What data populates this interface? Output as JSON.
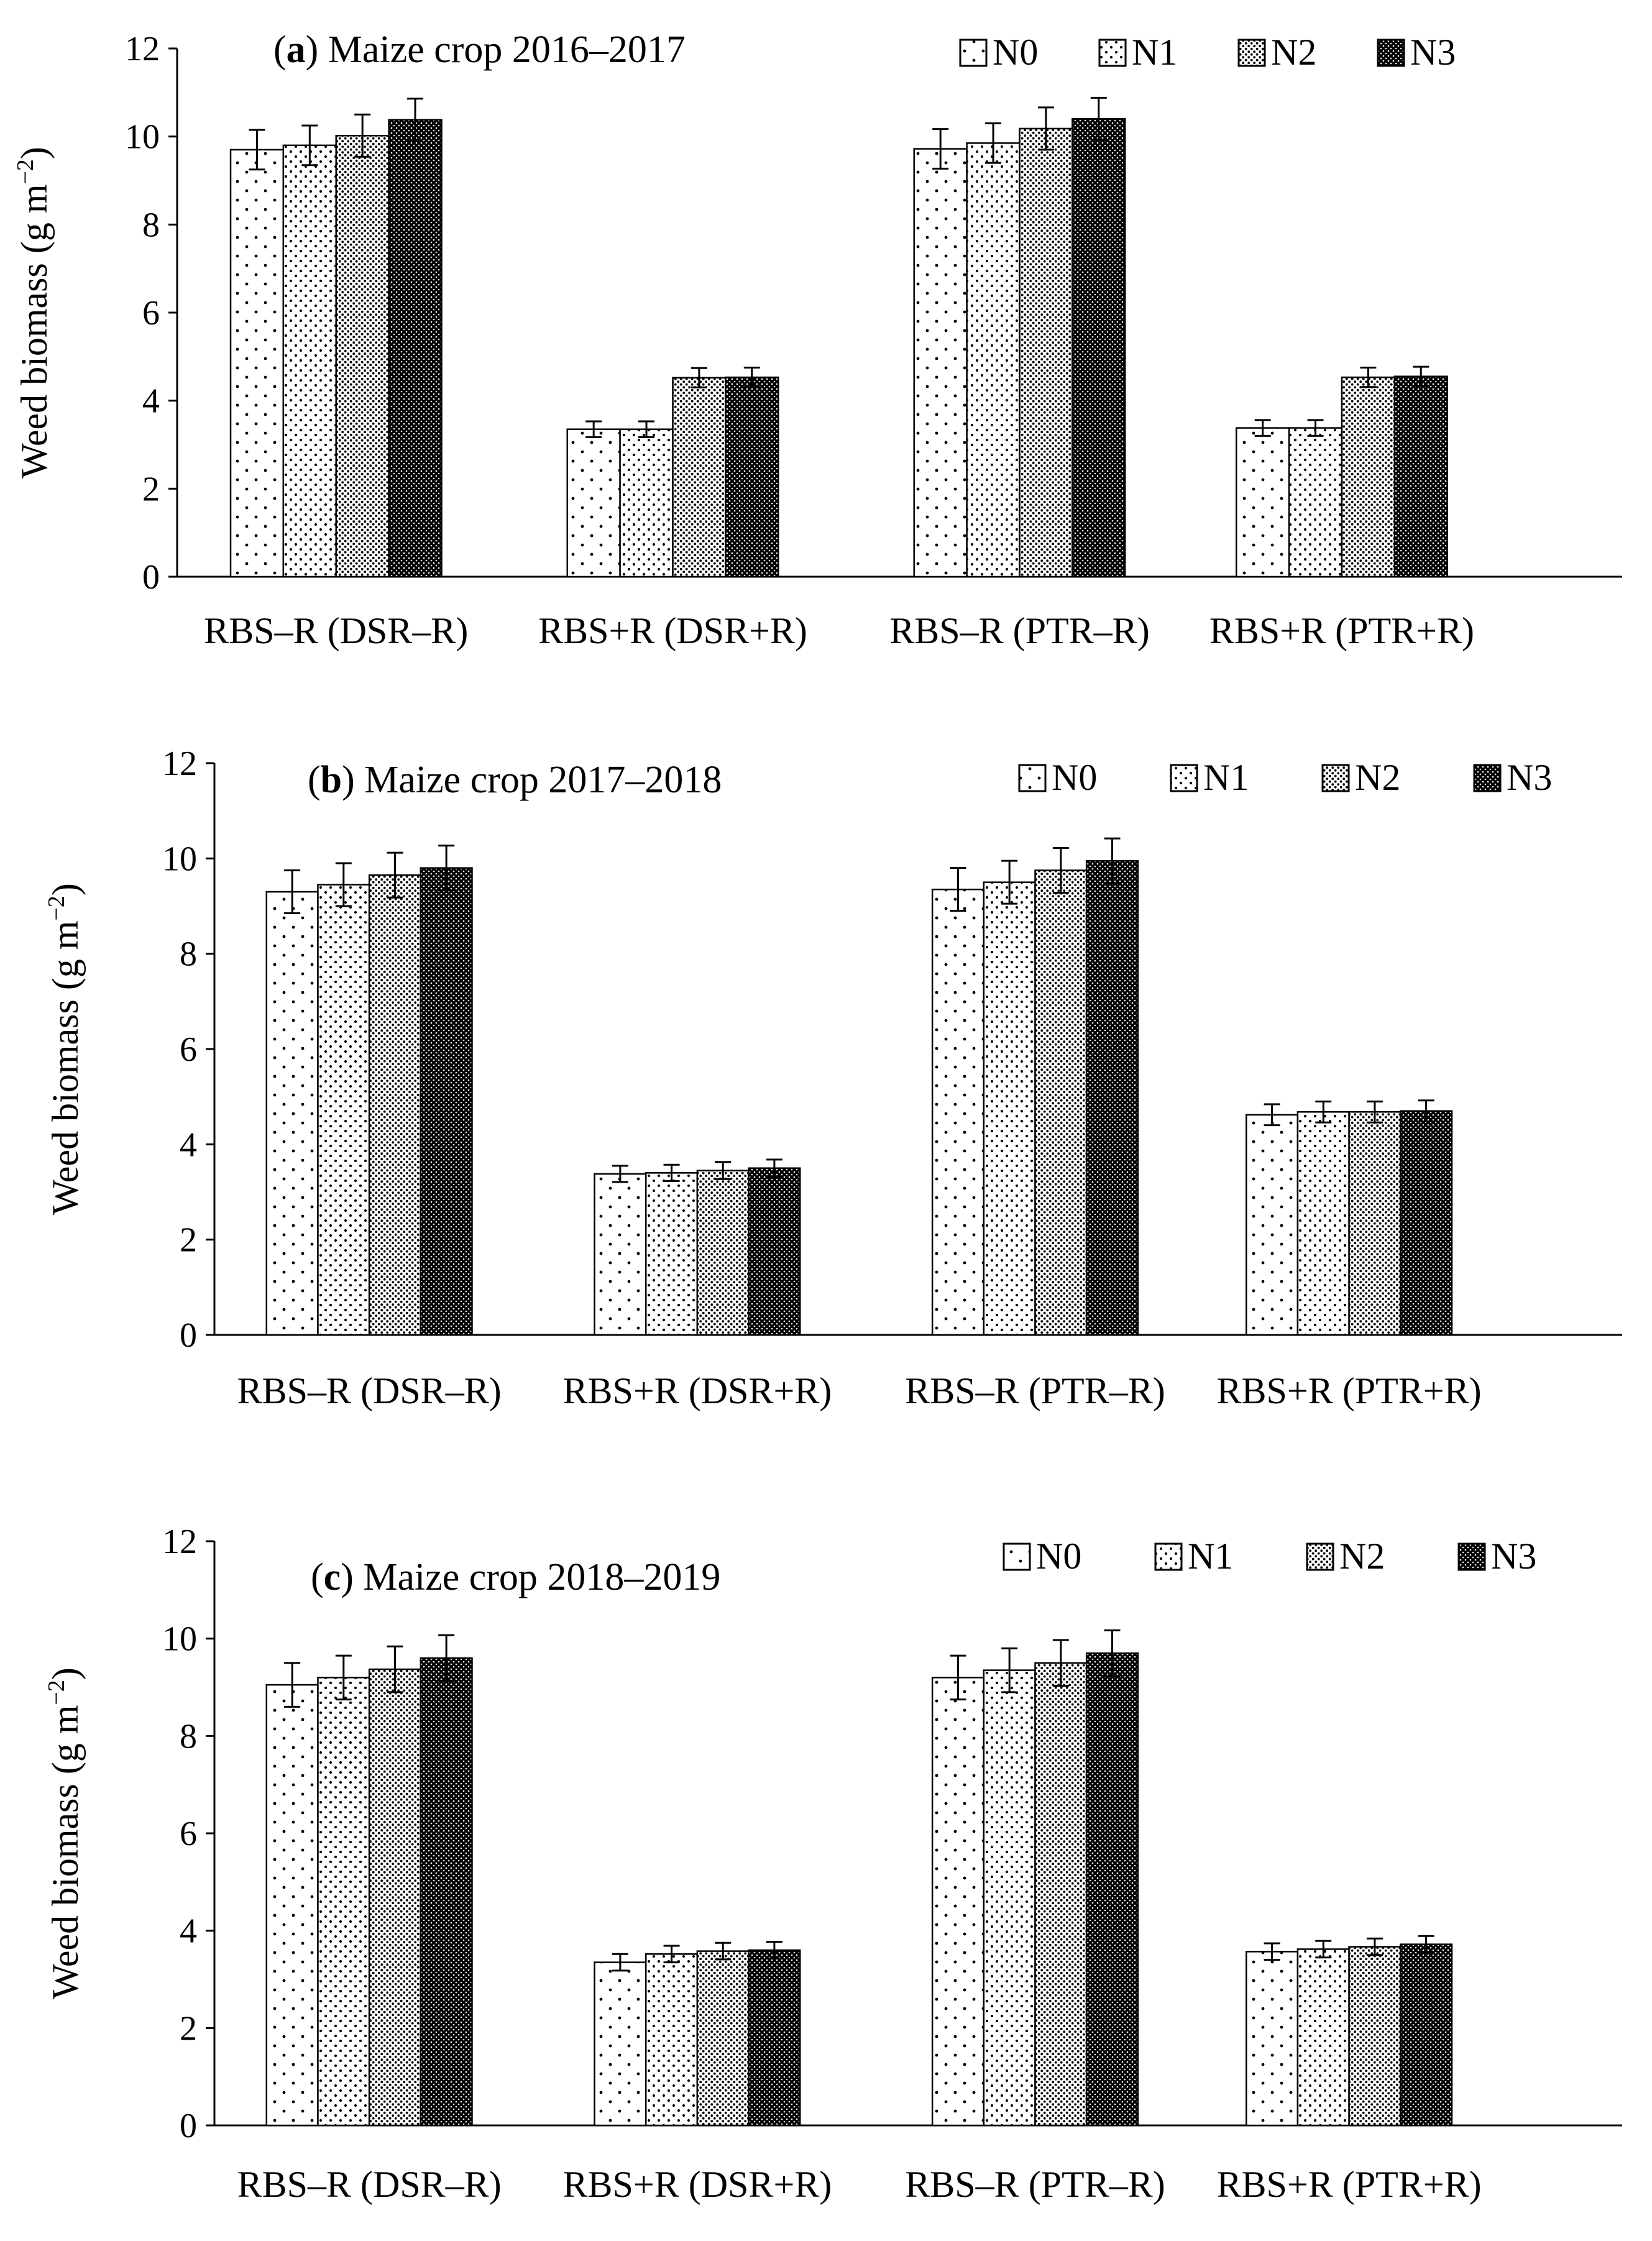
{
  "chart_data": [
    {
      "type": "bar",
      "panel": "a",
      "title_prefix": "(",
      "title_bold": "a",
      "title_rest": ") Maize crop 2016–2017",
      "ylabel": "Weed biomass (g m",
      "ylabel_sup": "−2",
      "ylabel_close": ")",
      "xlabel": "",
      "ylim": [
        0,
        12
      ],
      "yticks": [
        0,
        2,
        4,
        6,
        8,
        10,
        12
      ],
      "grid": false,
      "legend_position": "top-right",
      "categories": [
        "RBS–R (DSR–R)",
        "RBS+R (DSR+R)",
        "RBS–R (PTR–R)",
        "RBS+R (PTR+R)"
      ],
      "series": [
        {
          "name": "N0",
          "values": [
            9.7,
            3.35,
            9.72,
            3.38
          ],
          "errors": [
            0.45,
            0.18,
            0.45,
            0.18
          ]
        },
        {
          "name": "N1",
          "values": [
            9.8,
            3.35,
            9.85,
            3.38
          ],
          "errors": [
            0.45,
            0.18,
            0.45,
            0.18
          ]
        },
        {
          "name": "N2",
          "values": [
            10.02,
            4.52,
            10.18,
            4.53
          ],
          "errors": [
            0.48,
            0.22,
            0.48,
            0.22
          ]
        },
        {
          "name": "N3",
          "values": [
            10.38,
            4.53,
            10.4,
            4.55
          ],
          "errors": [
            0.48,
            0.22,
            0.48,
            0.22
          ]
        }
      ]
    },
    {
      "type": "bar",
      "panel": "b",
      "title_prefix": "(",
      "title_bold": "b",
      "title_rest": ") Maize crop 2017–2018",
      "ylabel": "Weed biomass (g m",
      "ylabel_sup": "−2",
      "ylabel_close": ")",
      "xlabel": "",
      "ylim": [
        0,
        12
      ],
      "yticks": [
        0,
        2,
        4,
        6,
        8,
        10,
        12
      ],
      "grid": false,
      "legend_position": "top-right",
      "categories": [
        "RBS–R (DSR–R)",
        "RBS+R (DSR+R)",
        "RBS–R (PTR–R)",
        "RBS+R (PTR+R)"
      ],
      "series": [
        {
          "name": "N0",
          "values": [
            9.3,
            3.38,
            9.35,
            4.62
          ],
          "errors": [
            0.45,
            0.17,
            0.45,
            0.22
          ]
        },
        {
          "name": "N1",
          "values": [
            9.45,
            3.4,
            9.5,
            4.68
          ],
          "errors": [
            0.45,
            0.17,
            0.45,
            0.22
          ]
        },
        {
          "name": "N2",
          "values": [
            9.65,
            3.45,
            9.75,
            4.68
          ],
          "errors": [
            0.47,
            0.18,
            0.47,
            0.22
          ]
        },
        {
          "name": "N3",
          "values": [
            9.8,
            3.5,
            9.95,
            4.7
          ],
          "errors": [
            0.47,
            0.18,
            0.47,
            0.22
          ]
        }
      ]
    },
    {
      "type": "bar",
      "panel": "c",
      "title_prefix": "(",
      "title_bold": "c",
      "title_rest": ") Maize crop 2018–2019",
      "ylabel": "Weed biomass (g m",
      "ylabel_sup": "−2",
      "ylabel_close": ")",
      "xlabel": "",
      "ylim": [
        0,
        12
      ],
      "yticks": [
        0,
        2,
        4,
        6,
        8,
        10,
        12
      ],
      "grid": false,
      "legend_position": "top-right",
      "categories": [
        "RBS–R (DSR–R)",
        "RBS+R (DSR+R)",
        "RBS–R (PTR–R)",
        "RBS+R (PTR+R)"
      ],
      "series": [
        {
          "name": "N0",
          "values": [
            9.05,
            3.35,
            9.2,
            3.57
          ],
          "errors": [
            0.45,
            0.17,
            0.45,
            0.17
          ]
        },
        {
          "name": "N1",
          "values": [
            9.2,
            3.52,
            9.35,
            3.62
          ],
          "errors": [
            0.45,
            0.17,
            0.45,
            0.17
          ]
        },
        {
          "name": "N2",
          "values": [
            9.37,
            3.58,
            9.5,
            3.67
          ],
          "errors": [
            0.47,
            0.17,
            0.47,
            0.17
          ]
        },
        {
          "name": "N3",
          "values": [
            9.6,
            3.6,
            9.7,
            3.72
          ],
          "errors": [
            0.47,
            0.17,
            0.47,
            0.17
          ]
        }
      ]
    }
  ]
}
